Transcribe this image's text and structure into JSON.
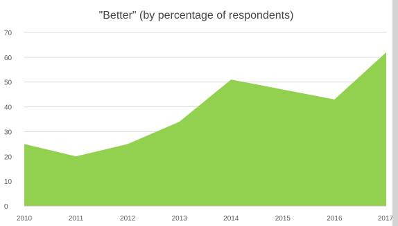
{
  "chart_data": {
    "type": "area",
    "title": "\"Better\" (by percentage of respondents)",
    "xlabel": "",
    "ylabel": "",
    "x": [
      "2010",
      "2011",
      "2012",
      "2013",
      "2014",
      "2015",
      "2016",
      "2017"
    ],
    "series": [
      {
        "values": [
          25,
          20,
          25,
          34,
          51,
          47,
          43,
          62
        ]
      }
    ],
    "ylim": [
      0,
      70
    ],
    "yticks": [
      0,
      10,
      20,
      30,
      40,
      50,
      60,
      70
    ],
    "grid": true,
    "legend": "none",
    "colors": {
      "area": "#92d050",
      "grid": "#d9d9d9",
      "text": "#595959",
      "title": "#444444"
    }
  }
}
